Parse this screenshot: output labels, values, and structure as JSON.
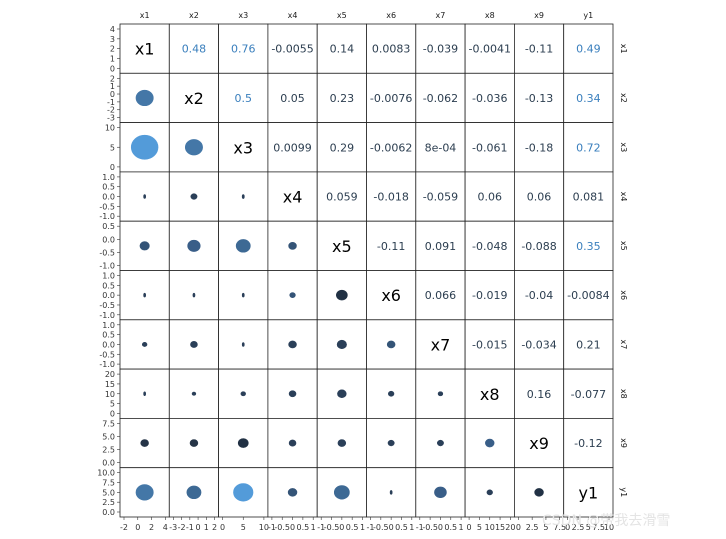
{
  "chart_data": {
    "type": "scatterplot-matrix",
    "variables": [
      "x1",
      "x2",
      "x3",
      "x4",
      "x5",
      "x6",
      "x7",
      "x8",
      "x9",
      "y1"
    ],
    "diagonal_labels": [
      "x1",
      "x2",
      "x3",
      "x4",
      "x5",
      "x6",
      "x7",
      "x8",
      "x9",
      "y1"
    ],
    "upper_triangle_correlations": [
      [
        "",
        "0.48",
        "0.76",
        "-0.0055",
        "0.14",
        "0.0083",
        "-0.039",
        "-0.0041",
        "-0.11",
        "0.49"
      ],
      [
        "",
        "",
        "0.5",
        "0.05",
        "0.23",
        "-0.0076",
        "-0.062",
        "-0.036",
        "-0.13",
        "0.34"
      ],
      [
        "",
        "",
        "",
        "0.0099",
        "0.29",
        "-0.0062",
        "8e-04",
        "-0.061",
        "-0.18",
        "0.72"
      ],
      [
        "",
        "",
        "",
        "",
        "0.059",
        "-0.018",
        "-0.059",
        "0.06",
        "0.06",
        "0.081"
      ],
      [
        "",
        "",
        "",
        "",
        "",
        "-0.11",
        "0.091",
        "-0.048",
        "-0.088",
        "0.35"
      ],
      [
        "",
        "",
        "",
        "",
        "",
        "",
        "0.066",
        "-0.019",
        "-0.04",
        "-0.0084"
      ],
      [
        "",
        "",
        "",
        "",
        "",
        "",
        "",
        "-0.015",
        "-0.034",
        "0.21"
      ],
      [
        "",
        "",
        "",
        "",
        "",
        "",
        "",
        "",
        "0.16",
        "-0.077"
      ],
      [
        "",
        "",
        "",
        "",
        "",
        "",
        "",
        "",
        "",
        "-0.12"
      ],
      [
        "",
        "",
        "",
        "",
        "",
        "",
        "",
        "",
        "",
        ""
      ]
    ],
    "y_axis_ticks": [
      [
        "4",
        "3",
        "2",
        "1",
        "0"
      ],
      [
        "2",
        "1",
        "0",
        "-1",
        "-2",
        "-3"
      ],
      [
        "10",
        "5",
        "0"
      ],
      [
        "1.0",
        "0.5",
        "0.0",
        "-0.5",
        "-1.0"
      ],
      [
        "0.5",
        "0.0",
        "-0.5",
        "-1.0"
      ],
      [
        "1.0",
        "0.5",
        "0.0",
        "-0.5",
        "-1.0"
      ],
      [
        "1.0",
        "0.5",
        "0.0",
        "-0.5",
        "-1.0"
      ],
      [
        "20",
        "15",
        "10",
        "5",
        "0"
      ],
      [
        "7.5",
        "5.0",
        "2.5",
        "0.0"
      ],
      [
        "10.0",
        "7.5",
        "5.0",
        "2.5",
        "0.0"
      ]
    ],
    "x_axis_ticks": [
      [
        "-2",
        "0",
        "2",
        "4"
      ],
      [
        "-3",
        "-2",
        "-1",
        "0",
        "1",
        "2"
      ],
      [
        "0",
        "5",
        "10"
      ],
      [
        "-1",
        "-0.5",
        "0",
        "0.5",
        "1"
      ],
      [
        "-1",
        "-0.5",
        "0",
        "0.5",
        "1"
      ],
      [
        "-1",
        "-0.5",
        "0",
        "0.5",
        "1"
      ],
      [
        "-1",
        "-0.5",
        "0",
        "0.5",
        "1"
      ],
      [
        "0",
        "5",
        "10",
        "15",
        "20"
      ],
      [
        "0",
        "2.5",
        "5",
        "7.5"
      ],
      [
        "0",
        "2.5",
        "5",
        "7.5",
        "10"
      ]
    ],
    "lower_triangle_blobs": [
      [],
      [
        {
          "size": 0.55,
          "color": "#3a70a3"
        }
      ],
      [
        {
          "size": 0.85,
          "color": "#4a96d8"
        },
        {
          "size": 0.55,
          "color": "#3a70a3"
        }
      ],
      [
        {
          "size": 0.08,
          "color": "#1f3550"
        },
        {
          "size": 0.2,
          "color": "#1f3550"
        },
        {
          "size": 0.1,
          "color": "#1f3550"
        }
      ],
      [
        {
          "size": 0.3,
          "color": "#2a4b70"
        },
        {
          "size": 0.4,
          "color": "#2f5682"
        },
        {
          "size": 0.45,
          "color": "#33618f"
        },
        {
          "size": 0.25,
          "color": "#2a4b70"
        }
      ],
      [
        {
          "size": 0.08,
          "color": "#1f3550"
        },
        {
          "size": 0.07,
          "color": "#1f3550"
        },
        {
          "size": 0.06,
          "color": "#1f3550"
        },
        {
          "size": 0.18,
          "color": "#2a4b70"
        },
        {
          "size": 0.35,
          "color": "#16263a"
        }
      ],
      [
        {
          "size": 0.15,
          "color": "#1f3550"
        },
        {
          "size": 0.22,
          "color": "#1f3550"
        },
        {
          "size": 0.06,
          "color": "#1f3550"
        },
        {
          "size": 0.25,
          "color": "#1f3550"
        },
        {
          "size": 0.3,
          "color": "#1f3550"
        },
        {
          "size": 0.25,
          "color": "#2a4b70"
        }
      ],
      [
        {
          "size": 0.06,
          "color": "#1f3550"
        },
        {
          "size": 0.12,
          "color": "#1f3550"
        },
        {
          "size": 0.15,
          "color": "#1f3550"
        },
        {
          "size": 0.22,
          "color": "#1f3550"
        },
        {
          "size": 0.28,
          "color": "#1f3550"
        },
        {
          "size": 0.18,
          "color": "#1f3550"
        },
        {
          "size": 0.15,
          "color": "#1f3550"
        }
      ],
      [
        {
          "size": 0.25,
          "color": "#1a2a3e"
        },
        {
          "size": 0.25,
          "color": "#1a2a3e"
        },
        {
          "size": 0.32,
          "color": "#16263a"
        },
        {
          "size": 0.22,
          "color": "#1f3550"
        },
        {
          "size": 0.25,
          "color": "#1f3550"
        },
        {
          "size": 0.2,
          "color": "#1f3550"
        },
        {
          "size": 0.2,
          "color": "#1f3550"
        },
        {
          "size": 0.28,
          "color": "#2f5682"
        }
      ],
      [
        {
          "size": 0.55,
          "color": "#3a70a3"
        },
        {
          "size": 0.45,
          "color": "#33618f"
        },
        {
          "size": 0.62,
          "color": "#4a96d8"
        },
        {
          "size": 0.28,
          "color": "#2a4b70"
        },
        {
          "size": 0.48,
          "color": "#33618f"
        },
        {
          "size": 0.08,
          "color": "#1f3550"
        },
        {
          "size": 0.38,
          "color": "#2f5682"
        },
        {
          "size": 0.18,
          "color": "#1f3550"
        },
        {
          "size": 0.28,
          "color": "#16263a"
        }
      ]
    ],
    "color_scale": {
      "low": "#132b43",
      "high": "#56b1f7"
    },
    "grid": false
  },
  "watermark": "CSDN @带我去滑雪"
}
